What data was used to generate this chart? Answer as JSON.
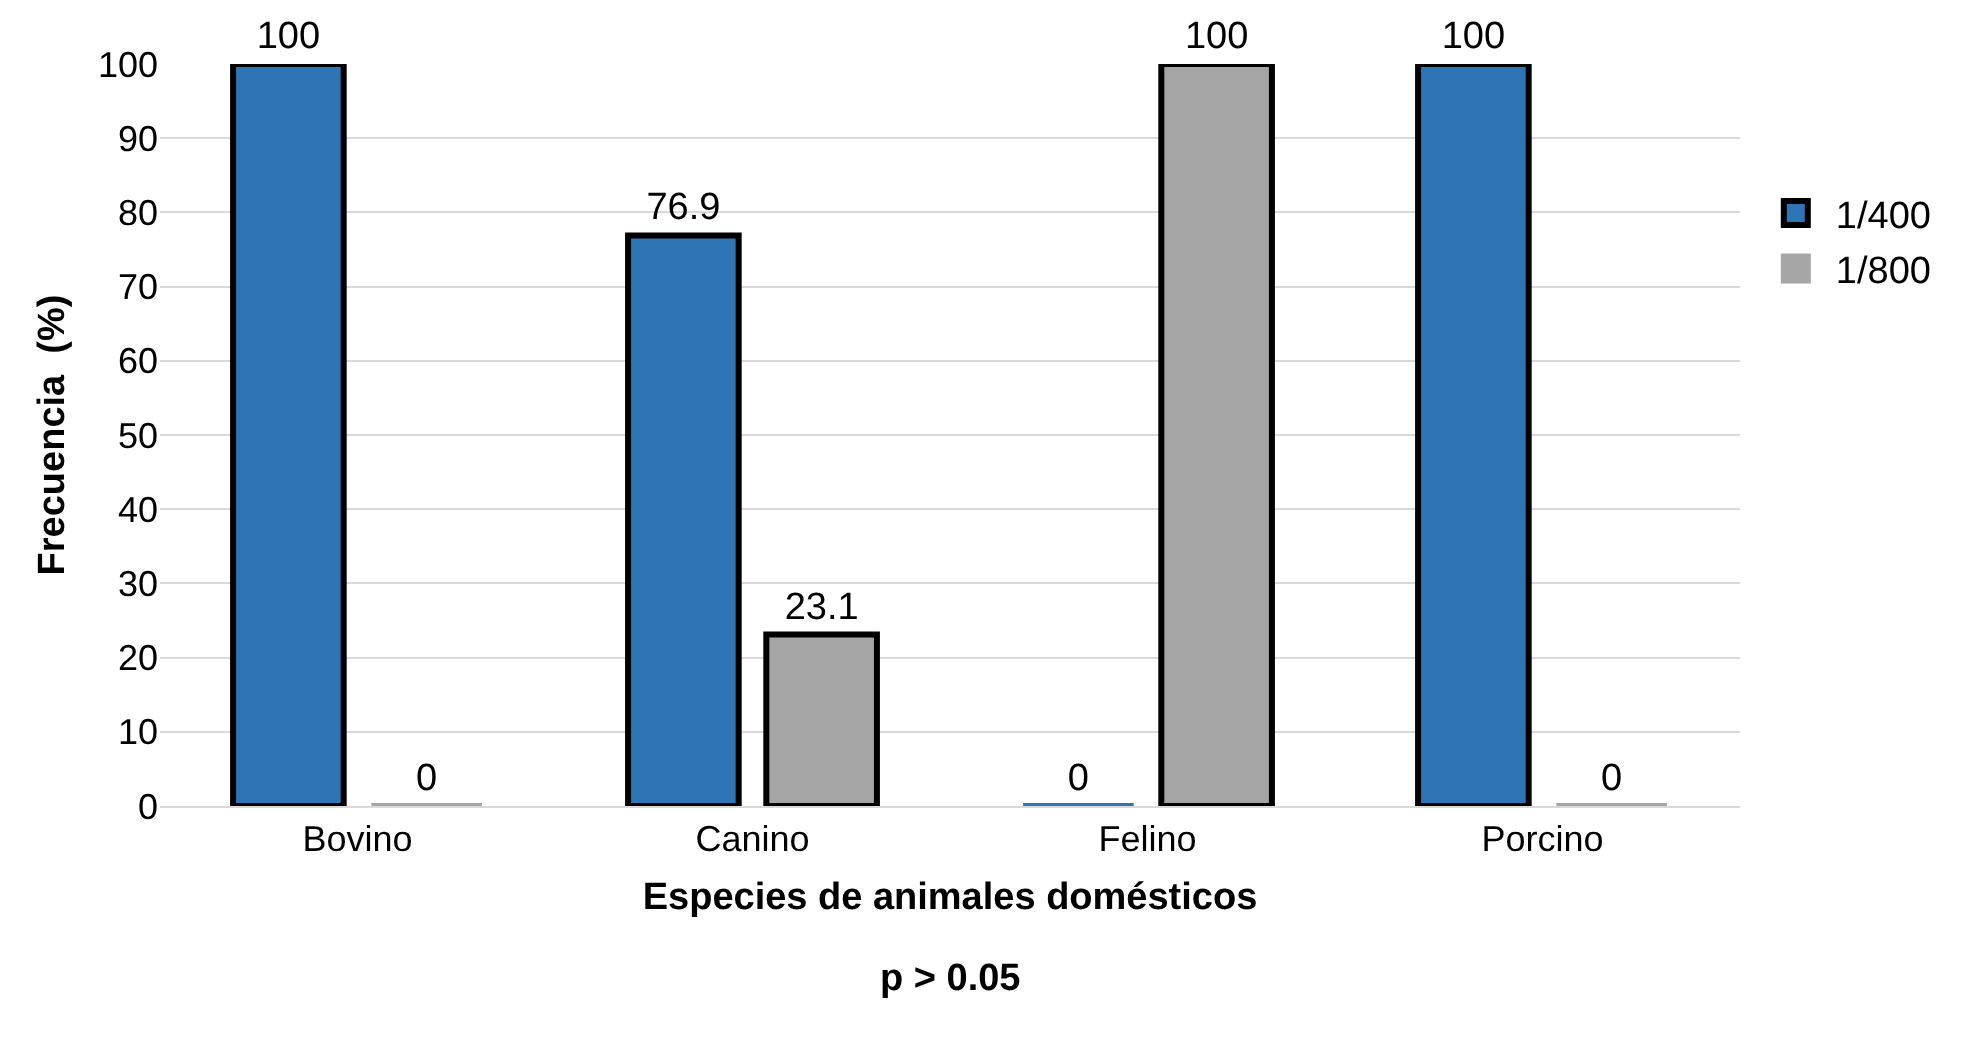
{
  "chart_data": {
    "type": "bar",
    "xlabel": "Especies de animales domésticos",
    "ylabel": "Frecuencia  (%)",
    "annotations": [
      "p > 0.05"
    ],
    "categories": [
      "Bovino",
      "Canino",
      "Felino",
      "Porcino"
    ],
    "series": [
      {
        "name": "1/400",
        "color": "#2e75b6",
        "values": [
          100,
          76.9,
          0,
          100
        ]
      },
      {
        "name": "1/800",
        "color": "#a5a5a5",
        "values": [
          0,
          23.1,
          100,
          0
        ]
      }
    ],
    "ylim": [
      0,
      100
    ],
    "yticks": [
      0,
      10,
      20,
      30,
      40,
      50,
      60,
      70,
      80,
      90,
      100
    ],
    "grid": "y",
    "legend": "right",
    "data_labels": true
  }
}
